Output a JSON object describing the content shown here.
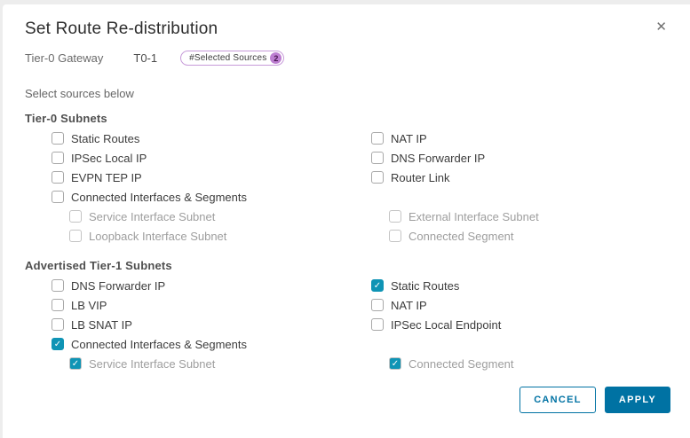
{
  "dialog": {
    "title": "Set Route Re-distribution",
    "close_glyph": "✕",
    "gateway_label": "Tier-0 Gateway",
    "gateway_value": "T0-1",
    "badge": {
      "label": "#Selected Sources",
      "count": "2"
    },
    "instruction": "Select sources below"
  },
  "sections": [
    {
      "heading": "Tier-0 Subnets",
      "columns": [
        {
          "items": [
            {
              "label": "Static Routes",
              "checked": false,
              "sub": false
            },
            {
              "label": "IPSec Local IP",
              "checked": false,
              "sub": false
            },
            {
              "label": "EVPN TEP IP",
              "checked": false,
              "sub": false
            },
            {
              "label": "Connected Interfaces & Segments",
              "checked": false,
              "sub": false
            },
            {
              "label": "Service Interface Subnet",
              "checked": false,
              "sub": true
            },
            {
              "label": "Loopback Interface Subnet",
              "checked": false,
              "sub": true
            }
          ]
        },
        {
          "items": [
            {
              "label": "NAT IP",
              "checked": false,
              "sub": false
            },
            {
              "label": "DNS Forwarder IP",
              "checked": false,
              "sub": false
            },
            {
              "label": "Router Link",
              "checked": false,
              "sub": false
            },
            {
              "spacer": true
            },
            {
              "label": "External Interface Subnet",
              "checked": false,
              "sub": true
            },
            {
              "label": "Connected Segment",
              "checked": false,
              "sub": true
            }
          ]
        }
      ]
    },
    {
      "heading": "Advertised Tier-1 Subnets",
      "columns": [
        {
          "items": [
            {
              "label": "DNS Forwarder IP",
              "checked": false,
              "sub": false
            },
            {
              "label": "LB VIP",
              "checked": false,
              "sub": false
            },
            {
              "label": "LB SNAT IP",
              "checked": false,
              "sub": false
            },
            {
              "label": "Connected Interfaces & Segments",
              "checked": true,
              "sub": false
            },
            {
              "label": "Service Interface Subnet",
              "checked": true,
              "sub": true
            }
          ]
        },
        {
          "items": [
            {
              "label": "Static Routes",
              "checked": true,
              "sub": false
            },
            {
              "label": "NAT IP",
              "checked": false,
              "sub": false
            },
            {
              "label": "IPSec Local Endpoint",
              "checked": false,
              "sub": false
            },
            {
              "spacer": true
            },
            {
              "label": "Connected Segment",
              "checked": true,
              "sub": true
            }
          ]
        }
      ]
    }
  ],
  "footer": {
    "cancel": "CANCEL",
    "apply": "APPLY"
  },
  "colors": {
    "primary_button": "#0072a3",
    "checkbox_checked": "#0f94b5",
    "badge_border": "#c79bd9",
    "badge_fill": "#bd7ed1"
  }
}
